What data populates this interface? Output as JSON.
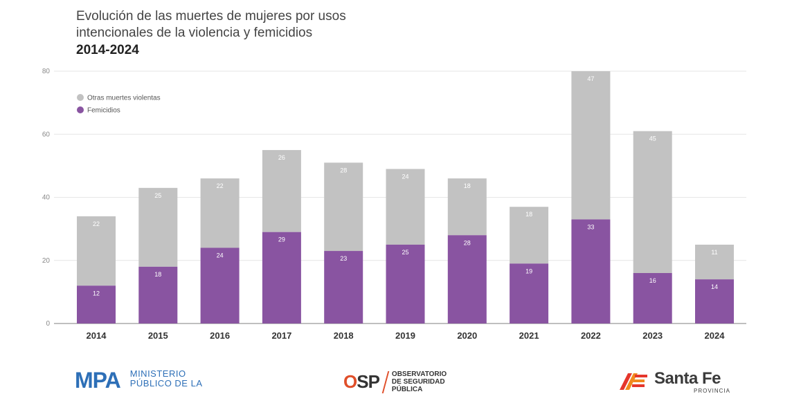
{
  "title": {
    "line1": "Evolución de las muertes de mujeres por usos",
    "line2": "intencionales de la violencia y femicidios",
    "years": "2014-2024"
  },
  "colors": {
    "femicidios": "#8954a1",
    "otras": "#c2c2c2",
    "grid": "#e6e6e6",
    "axis": "#999999"
  },
  "chart_data": {
    "type": "bar",
    "stacked": true,
    "title": "Evolución de las muertes de mujeres por usos intencionales de la violencia y femicidios 2014-2024",
    "categories": [
      "2014",
      "2015",
      "2016",
      "2017",
      "2018",
      "2019",
      "2020",
      "2021",
      "2022",
      "2023",
      "2024"
    ],
    "series": [
      {
        "name": "Femicidios",
        "values": [
          12,
          18,
          24,
          29,
          23,
          25,
          28,
          19,
          33,
          16,
          14
        ]
      },
      {
        "name": "Otras muertes violentas",
        "values": [
          22,
          25,
          22,
          26,
          28,
          24,
          18,
          18,
          47,
          45,
          11
        ]
      }
    ],
    "ylim": [
      0,
      80
    ],
    "yticks": [
      0,
      20,
      40,
      60,
      80
    ],
    "legend": [
      "Otras muertes violentas",
      "Femicidios"
    ],
    "legend_position": "top-left",
    "grid": true
  },
  "footer": {
    "mpa_mark": "MPA",
    "mpa_line1": "MINISTERIO",
    "mpa_line2": "PÚBLICO DE LA",
    "osp_mark_o": "O",
    "osp_mark_rest": "SP",
    "osp_line1": "OBSERVATORIO",
    "osp_line2": "DE SEGURIDAD",
    "osp_line3": "PÚBLICA",
    "sf_name": "Santa Fe",
    "sf_sub": "PROVINCIA"
  }
}
